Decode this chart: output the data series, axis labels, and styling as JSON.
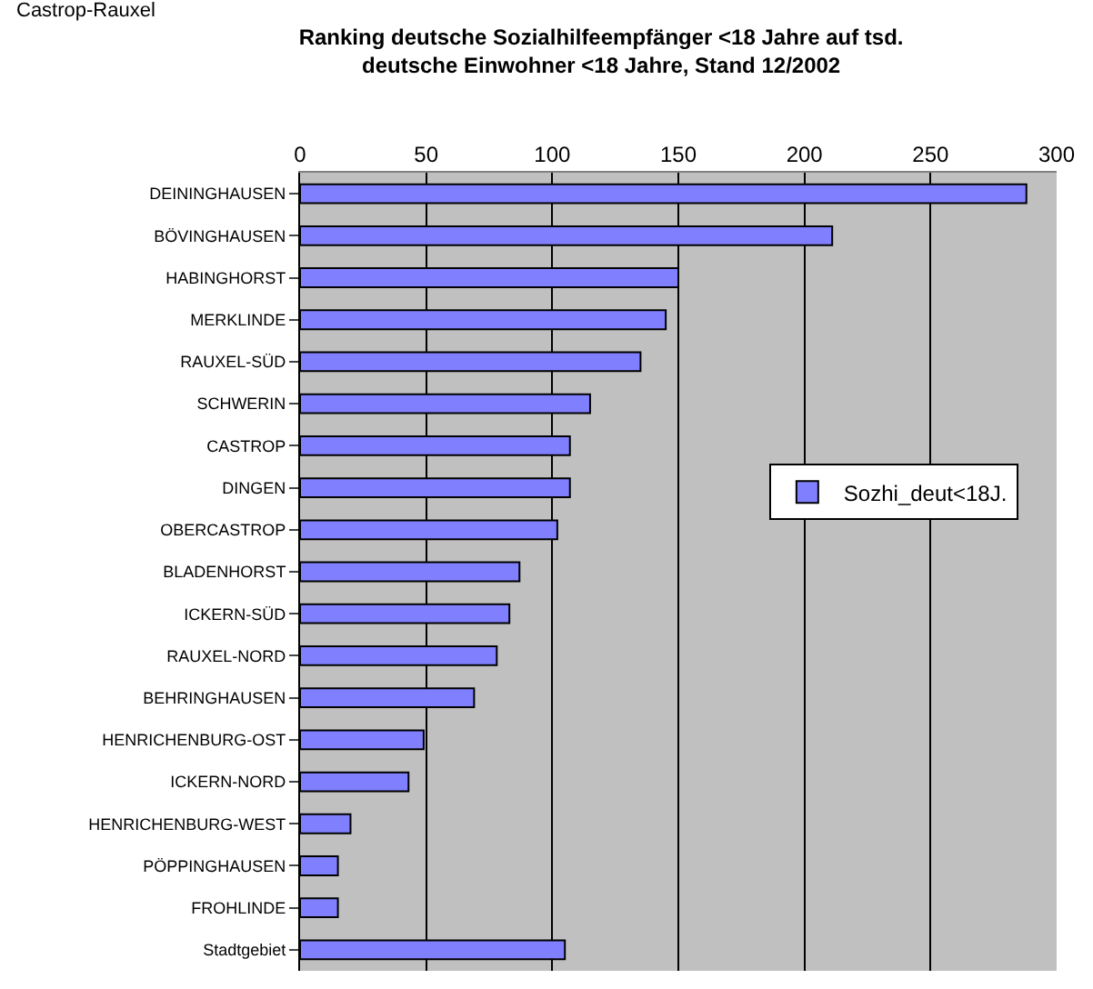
{
  "chart_data": {
    "type": "bar",
    "orientation": "horizontal",
    "title": "Ranking deutsche Sozialhilfeempfänger <18 Jahre auf tsd.\ndeutsche Einwohner <18 Jahre, Stand 12/2002",
    "annotations": [
      "Castrop-Rauxel"
    ],
    "categories": [
      "DEININGHAUSEN",
      "BÖVINGHAUSEN",
      "HABINGHORST",
      "MERKLINDE",
      "RAUXEL-SÜD",
      "SCHWERIN",
      "CASTROP",
      "DINGEN",
      "OBERCASTROP",
      "BLADENHORST",
      "ICKERN-SÜD",
      "RAUXEL-NORD",
      "BEHRINGHAUSEN",
      "HENRICHENBURG-OST",
      "ICKERN-NORD",
      "HENRICHENBURG-WEST",
      "PÖPPINGHAUSEN",
      "FROHLINDE",
      "Stadtgebiet"
    ],
    "series": [
      {
        "name": "Sozhi_deut<18J.",
        "color": "#8080ff",
        "values": [
          288,
          211,
          150,
          145,
          135,
          115,
          107,
          107,
          102,
          87,
          83,
          78,
          69,
          49,
          43,
          20,
          15,
          15,
          105
        ]
      }
    ],
    "xlim": [
      0,
      300
    ],
    "xticks": [
      0,
      50,
      100,
      150,
      200,
      250,
      300
    ],
    "grid": "x",
    "legend": "right"
  }
}
